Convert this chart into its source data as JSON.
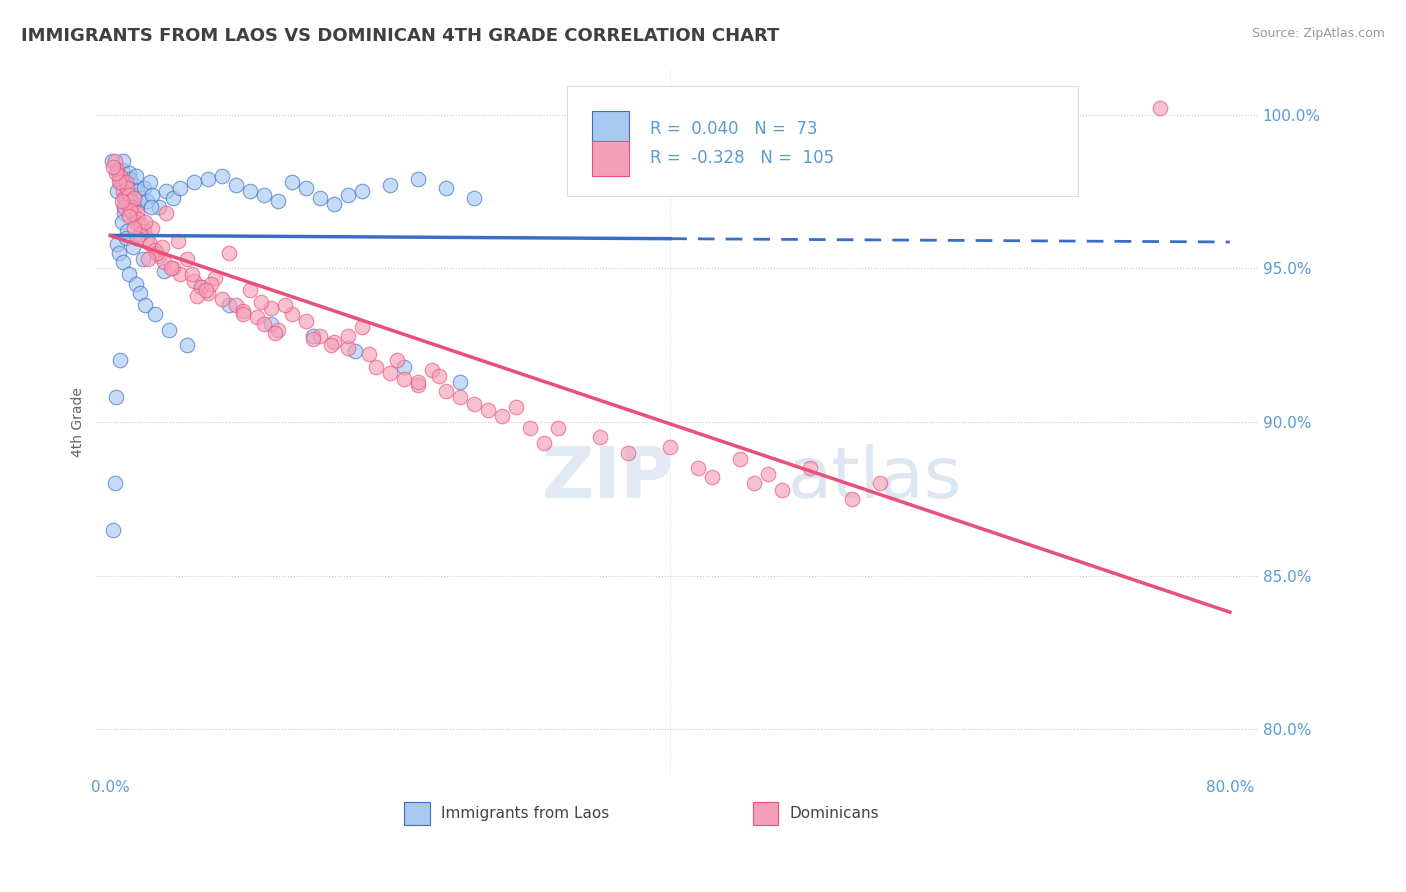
{
  "title": "IMMIGRANTS FROM LAOS VS DOMINICAN 4TH GRADE CORRELATION CHART",
  "source_text": "Source: ZipAtlas.com",
  "ylabel": "4th Grade",
  "xlim": [
    0.0,
    80.0
  ],
  "ylim": [
    80.0,
    100.0
  ],
  "xticklabels": [
    "0.0%",
    "80.0%"
  ],
  "yticks": [
    80.0,
    85.0,
    90.0,
    95.0,
    100.0
  ],
  "yticklabels": [
    "80.0%",
    "85.0%",
    "90.0%",
    "95.0%",
    "100.0%"
  ],
  "blue_R": 0.04,
  "blue_N": 73,
  "pink_R": -0.328,
  "pink_N": 105,
  "legend_label_blue": "Immigrants from Laos",
  "legend_label_pink": "Dominicans",
  "blue_color": "#A8C8F0",
  "pink_color": "#F4A0B8",
  "blue_line_color": "#3B6CC7",
  "pink_line_color": "#E8507A",
  "axis_color": "#5B9BD5",
  "title_color": "#404040",
  "grid_color": "#CCCCCC",
  "background_color": "#FFFFFF",
  "blue_scatter_x": [
    0.5,
    0.6,
    0.7,
    0.8,
    0.9,
    1.0,
    1.1,
    1.2,
    1.3,
    1.4,
    1.5,
    1.6,
    1.7,
    1.8,
    1.9,
    2.0,
    2.2,
    2.4,
    2.6,
    2.8,
    3.0,
    3.5,
    4.0,
    4.5,
    5.0,
    6.0,
    7.0,
    8.0,
    9.0,
    10.0,
    11.0,
    12.0,
    13.0,
    14.0,
    15.0,
    16.0,
    17.0,
    18.0,
    20.0,
    22.0,
    24.0,
    26.0,
    1.0,
    0.8,
    1.2,
    0.5,
    0.6,
    0.9,
    1.3,
    1.8,
    2.1,
    2.5,
    3.2,
    4.2,
    5.5,
    0.7,
    1.1,
    1.6,
    2.3,
    3.8,
    6.5,
    8.5,
    11.5,
    14.5,
    17.5,
    21.0,
    25.0,
    0.4,
    0.3,
    0.2,
    0.1,
    2.9,
    1.05
  ],
  "blue_scatter_y": [
    97.5,
    98.0,
    97.8,
    98.2,
    98.5,
    97.0,
    97.3,
    97.6,
    98.1,
    97.9,
    97.2,
    97.4,
    97.7,
    98.0,
    97.5,
    97.1,
    97.3,
    97.6,
    97.2,
    97.8,
    97.4,
    97.0,
    97.5,
    97.3,
    97.6,
    97.8,
    97.9,
    98.0,
    97.7,
    97.5,
    97.4,
    97.2,
    97.8,
    97.6,
    97.3,
    97.1,
    97.4,
    97.5,
    97.7,
    97.9,
    97.6,
    97.3,
    96.8,
    96.5,
    96.2,
    95.8,
    95.5,
    95.2,
    94.8,
    94.5,
    94.2,
    93.8,
    93.5,
    93.0,
    92.5,
    92.0,
    96.0,
    95.7,
    95.3,
    94.9,
    94.4,
    93.8,
    93.2,
    92.8,
    92.3,
    91.8,
    91.3,
    90.8,
    88.0,
    86.5,
    98.5,
    97.0,
    97.2
  ],
  "pink_scatter_x": [
    0.3,
    0.5,
    0.7,
    0.8,
    0.9,
    1.0,
    1.1,
    1.2,
    1.3,
    1.4,
    1.5,
    1.6,
    1.7,
    1.8,
    1.9,
    2.0,
    2.2,
    2.4,
    2.6,
    2.8,
    3.0,
    3.2,
    3.5,
    3.8,
    4.0,
    4.5,
    5.0,
    5.5,
    6.0,
    6.5,
    7.0,
    7.5,
    8.0,
    8.5,
    9.0,
    9.5,
    10.0,
    10.5,
    11.0,
    11.5,
    12.0,
    13.0,
    14.0,
    15.0,
    16.0,
    17.0,
    18.0,
    19.0,
    20.0,
    21.0,
    22.0,
    23.0,
    24.0,
    25.0,
    26.0,
    27.0,
    28.0,
    30.0,
    35.0,
    40.0,
    45.0,
    50.0,
    55.0,
    0.6,
    1.0,
    1.4,
    2.1,
    3.3,
    4.8,
    7.2,
    12.5,
    18.5,
    23.5,
    29.0,
    37.0,
    43.0,
    48.0,
    53.0,
    0.4,
    0.8,
    1.3,
    1.9,
    2.7,
    4.3,
    6.2,
    9.5,
    14.5,
    20.5,
    31.0,
    46.0,
    2.5,
    5.8,
    10.8,
    15.8,
    22.0,
    32.0,
    47.0,
    0.2,
    1.7,
    3.7,
    6.8,
    11.8,
    17.0,
    75.0,
    42.0
  ],
  "pink_scatter_y": [
    98.5,
    98.2,
    98.0,
    97.8,
    97.5,
    97.3,
    97.8,
    97.6,
    97.4,
    97.2,
    97.0,
    96.8,
    97.3,
    96.5,
    96.8,
    96.6,
    96.4,
    96.2,
    96.0,
    95.8,
    96.3,
    95.6,
    95.4,
    95.2,
    96.8,
    95.0,
    94.8,
    95.3,
    94.6,
    94.4,
    94.2,
    94.7,
    94.0,
    95.5,
    93.8,
    93.6,
    94.3,
    93.4,
    93.2,
    93.7,
    93.0,
    93.5,
    93.3,
    92.8,
    92.6,
    92.4,
    93.1,
    91.8,
    91.6,
    91.4,
    91.2,
    91.7,
    91.0,
    90.8,
    90.6,
    90.4,
    90.2,
    89.8,
    89.5,
    89.2,
    88.8,
    88.5,
    88.0,
    97.8,
    97.0,
    96.9,
    96.1,
    95.5,
    95.9,
    94.5,
    93.8,
    92.2,
    91.5,
    90.5,
    89.0,
    88.2,
    87.8,
    87.5,
    98.1,
    97.2,
    96.7,
    96.0,
    95.3,
    95.0,
    94.1,
    93.5,
    92.7,
    92.0,
    89.3,
    88.0,
    96.5,
    94.8,
    93.9,
    92.5,
    91.3,
    89.8,
    88.3,
    98.3,
    96.3,
    95.7,
    94.3,
    92.9,
    92.8,
    100.2,
    88.5
  ]
}
